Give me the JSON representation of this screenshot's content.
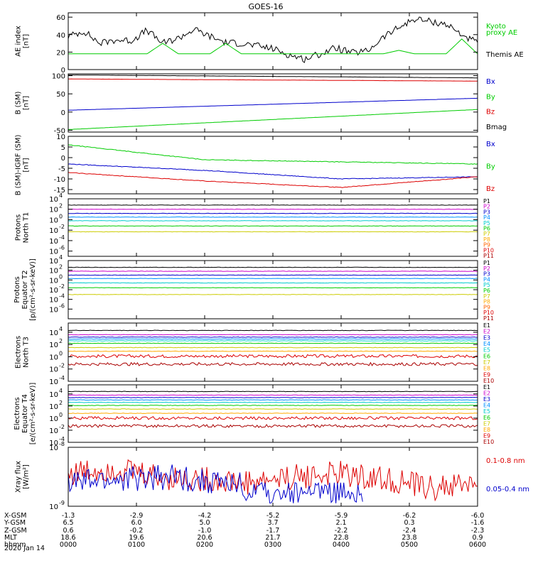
{
  "title": "GOES-16",
  "date": "2020 Jan 14",
  "colors": {
    "black": "#000000",
    "blue": "#0000cc",
    "green": "#00cc00",
    "red": "#dd0000"
  },
  "chart_data": [
    {
      "type": "line",
      "id": "ae",
      "ylabel": [
        "AE index",
        "[nT]"
      ],
      "ylim": [
        0,
        65
      ],
      "yticks": [
        "0",
        "20",
        "40",
        "60"
      ],
      "ytick_values": [
        0,
        20,
        40,
        60
      ],
      "series": [
        {
          "name": "Kyoto",
          "color": "#00cc00",
          "values": [
            null,
            null,
            null
          ]
        },
        {
          "name": "Themis AE",
          "color": "#000000",
          "values": [
            38,
            44,
            30,
            34,
            33,
            45,
            30,
            36,
            46,
            38,
            31,
            30,
            27,
            24,
            17,
            12,
            18,
            25,
            19,
            21,
            37,
            48,
            58,
            55,
            52,
            40,
            30
          ]
        },
        {
          "name": "proxy AE",
          "color": "#00cc00",
          "values": [
            18,
            18,
            18,
            18,
            18,
            18,
            30,
            18,
            18,
            18,
            30,
            18,
            18,
            18,
            18,
            18,
            18,
            18,
            18,
            18,
            18,
            22,
            18,
            18,
            18,
            35,
            18
          ]
        }
      ],
      "legend": [
        {
          "text": "Kyoto",
          "color": "#00cc00"
        },
        {
          "text": "proxy AE",
          "color": "#00cc00"
        },
        {
          "text": "Themis AE",
          "color": "#000000"
        }
      ]
    },
    {
      "type": "line",
      "id": "bsm",
      "ylabel": [
        "B (SM)",
        "[nT]"
      ],
      "ylim": [
        -55,
        105
      ],
      "yticks": [
        "-50",
        "0",
        "50",
        "100"
      ],
      "ytick_values": [
        -50,
        0,
        50,
        100
      ],
      "series": [
        {
          "name": "Bx",
          "color": "#0000cc",
          "values": [
            5,
            38
          ]
        },
        {
          "name": "By",
          "color": "#00cc00",
          "values": [
            -48,
            7
          ]
        },
        {
          "name": "Bz",
          "color": "#dd0000",
          "values": [
            91,
            85
          ]
        },
        {
          "name": "Bmag",
          "color": "#000000",
          "values": [
            102,
            94
          ]
        }
      ],
      "legend": [
        {
          "text": "Bx",
          "color": "#0000cc"
        },
        {
          "text": "By",
          "color": "#00cc00"
        },
        {
          "text": "Bz",
          "color": "#dd0000"
        },
        {
          "text": "Bmag",
          "color": "#000000"
        }
      ]
    },
    {
      "type": "line",
      "id": "bigrf",
      "ylabel": [
        "B (SM)-IGRF (SM)",
        "[nT]"
      ],
      "ylim": [
        -17,
        10
      ],
      "yticks": [
        "-15",
        "-10",
        "-5",
        "0",
        "5",
        "10"
      ],
      "ytick_values": [
        -15,
        -10,
        -5,
        0,
        5,
        10
      ],
      "series": [
        {
          "name": "Bx",
          "color": "#0000cc",
          "values": [
            -3,
            -6,
            -10,
            -9
          ]
        },
        {
          "name": "By",
          "color": "#00cc00",
          "values": [
            6,
            -1,
            -2,
            -3
          ]
        },
        {
          "name": "Bz",
          "color": "#dd0000",
          "values": [
            -7,
            -11,
            -14,
            -9
          ]
        }
      ],
      "legend": [
        {
          "text": "Bx",
          "color": "#0000cc"
        },
        {
          "text": "By",
          "color": "#00cc00"
        },
        {
          "text": "Bz",
          "color": "#dd0000"
        }
      ]
    },
    {
      "type": "line",
      "id": "pnorth",
      "log": true,
      "ylabel": [
        "Protons",
        "North T1"
      ],
      "ylim": [
        -7,
        4
      ],
      "yticks": [
        "10",
        "10",
        "10",
        "10",
        "10",
        "10"
      ],
      "yexp": [
        "4",
        "2",
        "0",
        "-2",
        "-4",
        "-6"
      ],
      "ytick_values": [
        4,
        2,
        0,
        -2,
        -4,
        -6
      ],
      "series": [
        {
          "name": "P1",
          "color": "#000000",
          "values": [
            2.8
          ]
        },
        {
          "name": "P2",
          "color": "#cc00cc",
          "values": [
            2
          ]
        },
        {
          "name": "P3",
          "color": "#0000cc",
          "values": [
            1.2
          ]
        },
        {
          "name": "P4",
          "color": "#0090ff",
          "values": [
            0.5
          ]
        },
        {
          "name": "P5",
          "color": "#00cccc",
          "values": [
            -0.2
          ]
        },
        {
          "name": "P6",
          "color": "#00cc00",
          "values": [
            -1.2
          ]
        },
        {
          "name": "P7",
          "color": "#cccc00",
          "values": [
            -2.3
          ]
        },
        {
          "name": "P8",
          "color": "#ffaa00",
          "values": [
            null
          ]
        },
        {
          "name": "P9",
          "color": "#ff6600",
          "values": [
            null
          ]
        },
        {
          "name": "P10",
          "color": "#dd0000",
          "values": [
            null
          ]
        },
        {
          "name": "P11",
          "color": "#aa0000",
          "values": [
            null
          ]
        }
      ],
      "legend": [
        "P1",
        "P2",
        "P3",
        "P4",
        "P5",
        "P6",
        "P7",
        "P8",
        "P9",
        "P10",
        "P11"
      ]
    },
    {
      "type": "line",
      "id": "pequator",
      "log": true,
      "ylabel": [
        "Protons",
        "Equator T2",
        "[p/(cm²-s-sr-keV)]"
      ],
      "ylim": [
        -8,
        4
      ],
      "yticks": [
        "10",
        "10",
        "10",
        "10",
        "10",
        "10"
      ],
      "yexp": [
        "4",
        "2",
        "0",
        "-2",
        "-4",
        "-6"
      ],
      "ytick_values": [
        4,
        2,
        0,
        -2,
        -4,
        -6
      ],
      "series": [
        {
          "name": "P1",
          "color": "#000000",
          "values": [
            2.6
          ]
        },
        {
          "name": "P2",
          "color": "#cc00cc",
          "values": [
            1.8
          ]
        },
        {
          "name": "P3",
          "color": "#0000cc",
          "values": [
            1
          ]
        },
        {
          "name": "P4",
          "color": "#0090ff",
          "values": [
            0.3
          ]
        },
        {
          "name": "P5",
          "color": "#00cccc",
          "values": [
            -0.6
          ]
        },
        {
          "name": "P6",
          "color": "#00cc00",
          "values": [
            -1.6
          ]
        },
        {
          "name": "P7",
          "color": "#cccc00",
          "values": [
            -3
          ]
        },
        {
          "name": "P8",
          "color": "#ffaa00",
          "values": [
            null
          ]
        },
        {
          "name": "P9",
          "color": "#ff6600",
          "values": [
            null
          ]
        },
        {
          "name": "P10",
          "color": "#dd0000",
          "values": [
            null
          ]
        },
        {
          "name": "P11",
          "color": "#aa0000",
          "values": [
            null
          ]
        }
      ],
      "legend": [
        "P1",
        "P2",
        "P3",
        "P4",
        "P5",
        "P6",
        "P7",
        "P8",
        "P9",
        "P10",
        "P11"
      ]
    },
    {
      "type": "line",
      "id": "enorth",
      "log": true,
      "ylabel": [
        "Electrons",
        "North T3"
      ],
      "ylim": [
        -4,
        5.5
      ],
      "yticks": [
        "10",
        "10",
        "10",
        "10",
        "10"
      ],
      "yexp": [
        "4",
        "2",
        "0",
        "-2",
        "-4"
      ],
      "ytick_values": [
        4,
        2,
        0,
        -2,
        -4
      ],
      "series": [
        {
          "name": "E1",
          "color": "#000000",
          "values": [
            4.3
          ]
        },
        {
          "name": "E2",
          "color": "#cc00cc",
          "values": [
            3.6
          ]
        },
        {
          "name": "E3",
          "color": "#0000cc",
          "values": [
            3.2
          ]
        },
        {
          "name": "E4",
          "color": "#0090ff",
          "values": [
            2.9
          ]
        },
        {
          "name": "E5",
          "color": "#00cccc",
          "values": [
            2.6
          ]
        },
        {
          "name": "E6",
          "color": "#00cc00",
          "values": [
            2.2
          ]
        },
        {
          "name": "E7",
          "color": "#cccc00",
          "values": [
            1.5
          ]
        },
        {
          "name": "E8",
          "color": "#ffaa00",
          "values": [
            0.9
          ]
        },
        {
          "name": "E9",
          "color": "#dd0000",
          "values": [
            0.1
          ]
        },
        {
          "name": "E10",
          "color": "#aa0000",
          "values": [
            -1.2
          ]
        }
      ],
      "legend": [
        "E1",
        "E2",
        "E3",
        "E4",
        "E5",
        "E6",
        "E7",
        "E8",
        "E9",
        "E10"
      ]
    },
    {
      "type": "line",
      "id": "eequator",
      "log": true,
      "ylabel": [
        "Electrons",
        "Equator T4",
        "[e/(cm²-s-sr-keV)]"
      ],
      "ylim": [
        -4,
        5.5
      ],
      "yticks": [
        "10",
        "10",
        "10",
        "10",
        "10"
      ],
      "yexp": [
        "4",
        "2",
        "0",
        "-2",
        "-4"
      ],
      "ytick_values": [
        4,
        2,
        0,
        -2,
        -4
      ],
      "series": [
        {
          "name": "E1",
          "color": "#000000",
          "values": [
            4.4
          ]
        },
        {
          "name": "E2",
          "color": "#cc00cc",
          "values": [
            3.8
          ]
        },
        {
          "name": "E3",
          "color": "#0000cc",
          "values": [
            3.4
          ]
        },
        {
          "name": "E4",
          "color": "#0090ff",
          "values": [
            3
          ]
        },
        {
          "name": "E5",
          "color": "#00cccc",
          "values": [
            2.6
          ]
        },
        {
          "name": "E6",
          "color": "#00cc00",
          "values": [
            2.1
          ]
        },
        {
          "name": "E7",
          "color": "#cccc00",
          "values": [
            1.5
          ]
        },
        {
          "name": "E8",
          "color": "#ffaa00",
          "values": [
            0.8
          ]
        },
        {
          "name": "E9",
          "color": "#dd0000",
          "values": [
            0
          ]
        },
        {
          "name": "E10",
          "color": "#aa0000",
          "values": [
            -1.3
          ]
        }
      ],
      "legend": [
        "E1",
        "E2",
        "E3",
        "E4",
        "E5",
        "E6",
        "E7",
        "E8",
        "E9",
        "E10"
      ]
    },
    {
      "type": "line",
      "id": "xray",
      "log": true,
      "ylabel": [
        "Xray flux",
        "[W/m²]"
      ],
      "ylim": [
        -9,
        -8
      ],
      "yticks": [
        "10",
        "10"
      ],
      "yexp": [
        "-8",
        "-9"
      ],
      "ytick_values": [
        -8,
        -9
      ],
      "series": [
        {
          "name": "0.1-0.8 nm",
          "color": "#dd0000",
          "values": [
            -8.45,
            -8.35,
            -8.5,
            -8.55,
            -8.6,
            -8.5,
            -8.45,
            -8.55,
            -8.7,
            -8.6
          ]
        },
        {
          "name": "0.05-0.4 nm",
          "color": "#0000cc",
          "values": [
            -8.6,
            -8.5,
            -8.7,
            -8.9,
            -9
          ]
        }
      ],
      "legend": [
        {
          "text": "0.1-0.8 nm",
          "color": "#dd0000"
        },
        {
          "text": "0.05-0.4 nm",
          "color": "#0000cc"
        }
      ]
    }
  ],
  "footer": {
    "labels": [
      "X-GSM",
      "Y-GSM",
      "Z-GSM",
      "MLT",
      "hhmm"
    ],
    "columns": [
      [
        "-1.3",
        "6.5",
        "0.6",
        "18.6",
        "0000"
      ],
      [
        "-2.9",
        "6.0",
        "-0.2",
        "19.6",
        "0100"
      ],
      [
        "-4.2",
        "5.0",
        "-1.0",
        "20.6",
        "0200"
      ],
      [
        "-5.2",
        "3.7",
        "-1.7",
        "21.7",
        "0300"
      ],
      [
        "-5.9",
        "2.1",
        "-2.2",
        "22.8",
        "0400"
      ],
      [
        "-6.2",
        "0.3",
        "-2.4",
        "23.8",
        "0500"
      ],
      [
        "-6.0",
        "-1.6",
        "-2.3",
        "0.9",
        "0600"
      ]
    ]
  }
}
